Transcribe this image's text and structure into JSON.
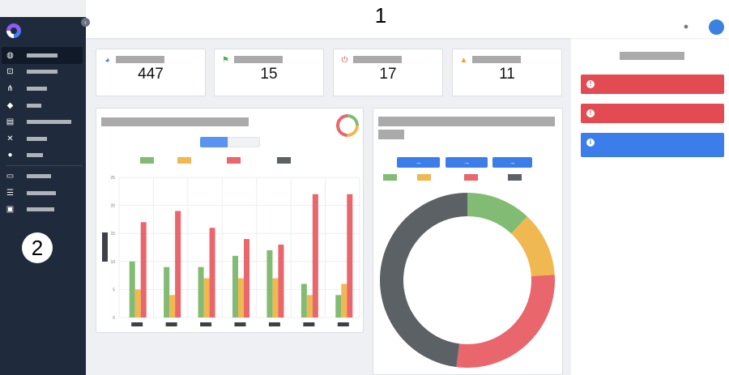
{
  "header": {
    "step_marker": "1",
    "bulb_icon": "lightbulb-icon",
    "avatar_color": "#3b82e0"
  },
  "sidebar": {
    "step_marker": "2",
    "items": [
      {
        "icon": "dashboard-icon",
        "glyph": "◍",
        "active": true
      },
      {
        "icon": "flow-icon",
        "glyph": "⊡"
      },
      {
        "icon": "network-icon",
        "glyph": "⋔"
      },
      {
        "icon": "tag-icon",
        "glyph": "◆"
      },
      {
        "icon": "clipboard-icon",
        "glyph": "▤"
      },
      {
        "icon": "tools-icon",
        "glyph": "✕"
      },
      {
        "icon": "users-icon",
        "glyph": "●"
      },
      {
        "icon": "card-icon",
        "glyph": "▭"
      },
      {
        "icon": "list-icon",
        "glyph": "☰"
      },
      {
        "icon": "archive-icon",
        "glyph": "▣"
      }
    ]
  },
  "stats": [
    {
      "icon": "pie-chart-icon",
      "glyph": "◕",
      "color": "#3b7de9",
      "value": "447"
    },
    {
      "icon": "flag-icon",
      "glyph": "⚑",
      "color": "#4caf50",
      "value": "15"
    },
    {
      "icon": "power-icon",
      "glyph": "⏻",
      "color": "#e24b52",
      "value": "17"
    },
    {
      "icon": "warning-icon",
      "glyph": "▲",
      "color": "#f0a030",
      "value": "11"
    }
  ],
  "alerts": [
    {
      "color": "#e24b52",
      "glyph": "!"
    },
    {
      "color": "#e24b52",
      "glyph": "!"
    },
    {
      "color": "#3b7de9",
      "glyph": "i"
    }
  ],
  "colors": {
    "green": "#82bb73",
    "yellow": "#f0b851",
    "red": "#e8666c",
    "dark": "#5c6166",
    "blue": "#5b93f5"
  },
  "chart_data": [
    {
      "type": "bar",
      "ylim": [
        0,
        25
      ],
      "yticks": [
        "25",
        "20",
        "15",
        "10",
        "5",
        "0"
      ],
      "series": [
        {
          "color": "#82bb73",
          "values": [
            10,
            9,
            9,
            11,
            12,
            6,
            4
          ]
        },
        {
          "color": "#f0b851",
          "values": [
            5,
            4,
            7,
            7,
            7,
            4,
            6
          ]
        },
        {
          "color": "#e8666c",
          "values": [
            17,
            19,
            16,
            14,
            13,
            22,
            22
          ]
        }
      ]
    },
    {
      "type": "pie",
      "style": "donut",
      "values": [
        12,
        12,
        28,
        48
      ],
      "colors": [
        "#82bb73",
        "#f0b851",
        "#e8666c",
        "#5c6166"
      ]
    }
  ]
}
